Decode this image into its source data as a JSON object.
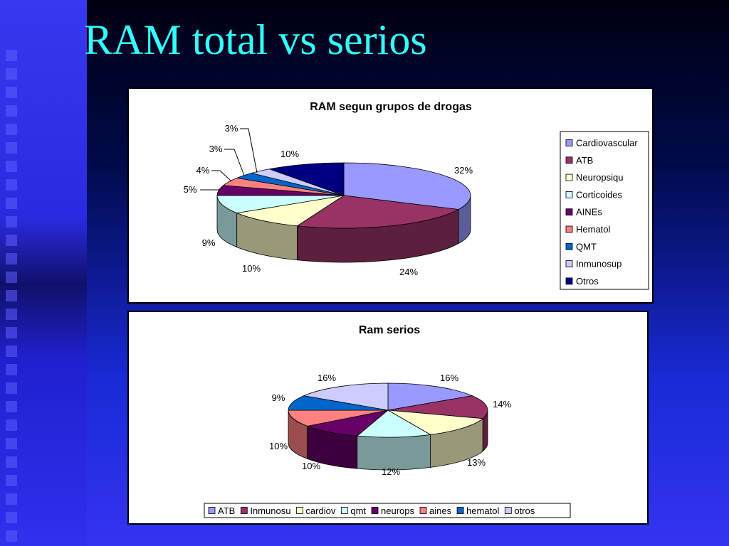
{
  "slide": {
    "title": "RAM total vs serios"
  },
  "chart_data": [
    {
      "type": "pie",
      "title": "RAM segun grupos de drogas",
      "categories": [
        "Cardiovascular",
        "ATB",
        "Neuropsiqu",
        "Corticoides",
        "AINEs",
        "Hematol",
        "QMT",
        "Inmunosup",
        "Otros"
      ],
      "values": [
        32,
        24,
        10,
        9,
        5,
        4,
        3,
        3,
        10
      ],
      "data_labels": [
        "32%",
        "24%",
        "10%",
        "9%",
        "5%",
        "4%",
        "3%",
        "3%",
        "10%"
      ],
      "colors": [
        "#9999ff",
        "#993366",
        "#ffffcc",
        "#ccffff",
        "#660066",
        "#ff8080",
        "#0066cc",
        "#ccccff",
        "#000080"
      ],
      "legend_position": "right"
    },
    {
      "type": "pie",
      "title": "Ram serios",
      "categories": [
        "ATB",
        "Inmunosu",
        "cardiov",
        "qmt",
        "neurops",
        "aines",
        "hematol",
        "otros"
      ],
      "values": [
        16,
        14,
        13,
        12,
        10,
        10,
        9,
        16
      ],
      "data_labels": [
        "16%",
        "14%",
        "13%",
        "12%",
        "10%",
        "10%",
        "9%",
        "16%"
      ],
      "colors": [
        "#9999ff",
        "#993366",
        "#ffffcc",
        "#ccffff",
        "#660066",
        "#ff8080",
        "#0066cc",
        "#ccccff"
      ],
      "legend_position": "bottom"
    }
  ]
}
